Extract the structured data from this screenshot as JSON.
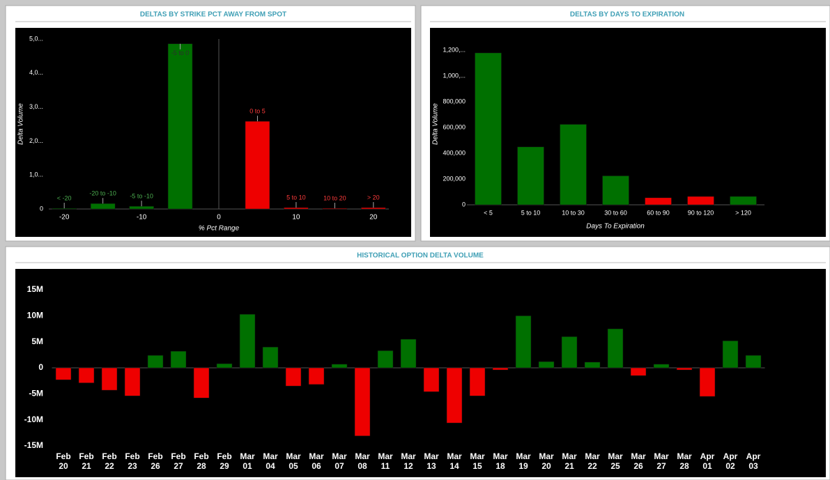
{
  "chart_data": [
    {
      "type": "bar",
      "title": "DELTAS BY STRIKE PCT AWAY FROM SPOT",
      "xlabel": "% Pct Range",
      "ylabel": "Delta Volume",
      "x": [
        -20,
        -15,
        -10,
        -5,
        5,
        10,
        15,
        20
      ],
      "value_names": [
        "< -20",
        "-20 to -10",
        "-5 to -10",
        "-5 to 0",
        "0 to 5",
        "5 to 10",
        "10 to 20",
        "> 20"
      ],
      "values": [
        20,
        160,
        80,
        4860,
        2580,
        40,
        20,
        40
      ],
      "colors": [
        "#007000",
        "#007000",
        "#007000",
        "#007000",
        "#ee0000",
        "#ee0000",
        "#ee0000",
        "#ee0000"
      ],
      "label_colors": [
        "#4caf50",
        "#4caf50",
        "#4caf50",
        "#2e2e2e",
        "#ff3b3b",
        "#ff3b3b",
        "#ff3b3b",
        "#ff3b3b"
      ],
      "xlim": [
        -22,
        22
      ],
      "xticks": [
        -20,
        -10,
        0,
        10,
        20
      ],
      "ylim": [
        0,
        5000
      ],
      "yticks": [
        0,
        {
          "value": 1000,
          "label": "1,0..."
        },
        {
          "value": 2000,
          "label": "2,0..."
        },
        {
          "value": 3000,
          "label": "3,0..."
        },
        {
          "value": 4000,
          "label": "4,0..."
        },
        {
          "value": 5000,
          "label": "5,0..."
        }
      ]
    },
    {
      "type": "bar",
      "title": "DELTAS BY DAYS TO EXPIRATION",
      "xlabel": "Days To Expiration",
      "ylabel": "Delta Volume",
      "categories": [
        "< 5",
        "5 to 10",
        "10 to 30",
        "30 to 60",
        "60 to 90",
        "90 to 120",
        "> 120"
      ],
      "values": [
        1180000,
        450000,
        625000,
        225000,
        55000,
        65000,
        65000
      ],
      "colors": [
        "#007000",
        "#007000",
        "#007000",
        "#007000",
        "#ee0000",
        "#ee0000",
        "#007000"
      ],
      "ylim": [
        0,
        1250000
      ],
      "yticks": [
        0,
        {
          "value": 200000,
          "label": "200,000"
        },
        {
          "value": 400000,
          "label": "400,000"
        },
        {
          "value": 600000,
          "label": "600,000"
        },
        {
          "value": 800000,
          "label": "800,000"
        },
        {
          "value": 1000000,
          "label": "1,000,..."
        },
        {
          "value": 1200000,
          "label": "1,200,..."
        }
      ]
    },
    {
      "type": "bar",
      "title": "HISTORICAL OPTION DELTA VOLUME",
      "categories": [
        "Feb 20",
        "Feb 21",
        "Feb 22",
        "Feb 23",
        "Feb 26",
        "Feb 27",
        "Feb 28",
        "Feb 29",
        "Mar 01",
        "Mar 04",
        "Mar 05",
        "Mar 06",
        "Mar 07",
        "Mar 08",
        "Mar 11",
        "Mar 12",
        "Mar 13",
        "Mar 14",
        "Mar 15",
        "Mar 18",
        "Mar 19",
        "Mar 20",
        "Mar 21",
        "Mar 22",
        "Mar 25",
        "Mar 26",
        "Mar 27",
        "Mar 28",
        "Apr 01",
        "Apr 02",
        "Apr 03"
      ],
      "values": [
        -2300000,
        -2900000,
        -4300000,
        -5400000,
        2400000,
        3200000,
        -5800000,
        800000,
        10300000,
        4000000,
        -3500000,
        -3200000,
        700000,
        -13100000,
        3300000,
        5500000,
        -4600000,
        -10600000,
        -5400000,
        -400000,
        10000000,
        1200000,
        6000000,
        1100000,
        7500000,
        -1500000,
        700000,
        -400000,
        -5500000,
        5200000,
        2400000
      ],
      "positive_color": "#007000",
      "negative_color": "#ee0000",
      "ylim": [
        -15000000,
        15000000
      ],
      "yticks": [
        {
          "value": -15000000,
          "label": "-15M"
        },
        {
          "value": -10000000,
          "label": "-10M"
        },
        {
          "value": -5000000,
          "label": "-5M"
        },
        0,
        {
          "value": 5000000,
          "label": "5M"
        },
        {
          "value": 10000000,
          "label": "10M"
        },
        {
          "value": 15000000,
          "label": "15M"
        }
      ]
    }
  ]
}
